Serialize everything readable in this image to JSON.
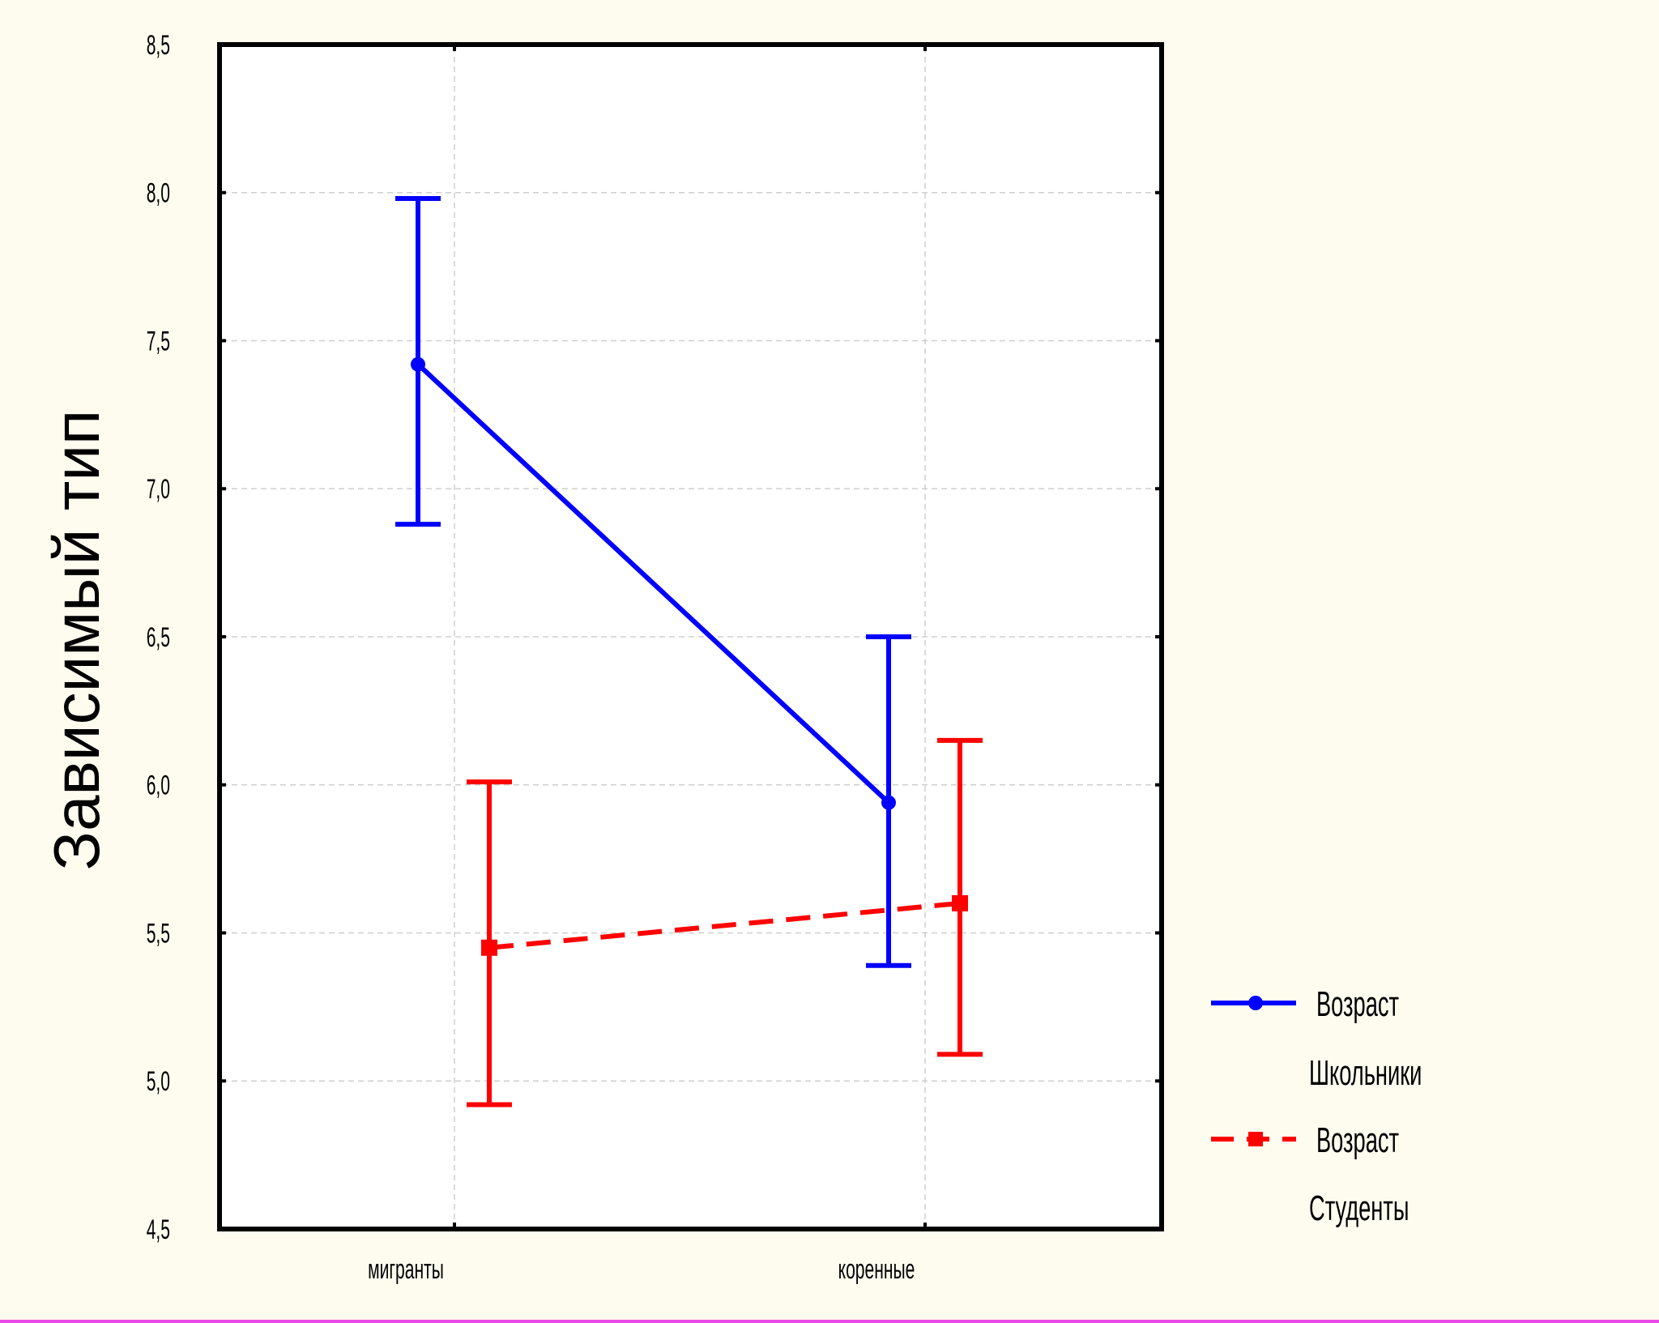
{
  "chart_data": {
    "type": "line",
    "title": "",
    "ylabel": "Зависимый тип",
    "xlabel": "",
    "categories": [
      "мигранты",
      "коренные"
    ],
    "ylim": [
      4.5,
      8.5
    ],
    "yticks": [
      4.5,
      5.0,
      5.5,
      6.0,
      6.5,
      7.0,
      7.5,
      8.0,
      8.5
    ],
    "ytick_labels": [
      "4,5",
      "5,0",
      "5,5",
      "6,0",
      "6,5",
      "7,0",
      "7,5",
      "8,0",
      "8,5"
    ],
    "grid": true,
    "legend_position": "bottom-right",
    "series": [
      {
        "legend_title": "Возраст",
        "name": "Школьники",
        "color": "#0000ff",
        "line_style": "solid",
        "marker": "circle",
        "values": [
          7.42,
          5.94
        ],
        "lower": [
          6.88,
          5.39
        ],
        "upper": [
          7.98,
          6.5
        ]
      },
      {
        "legend_title": "Возраст",
        "name": "Студенты",
        "color": "#ff0000",
        "line_style": "dashed",
        "marker": "square",
        "values": [
          5.45,
          5.6
        ],
        "lower": [
          4.92,
          5.09
        ],
        "upper": [
          6.01,
          6.15
        ]
      }
    ]
  }
}
